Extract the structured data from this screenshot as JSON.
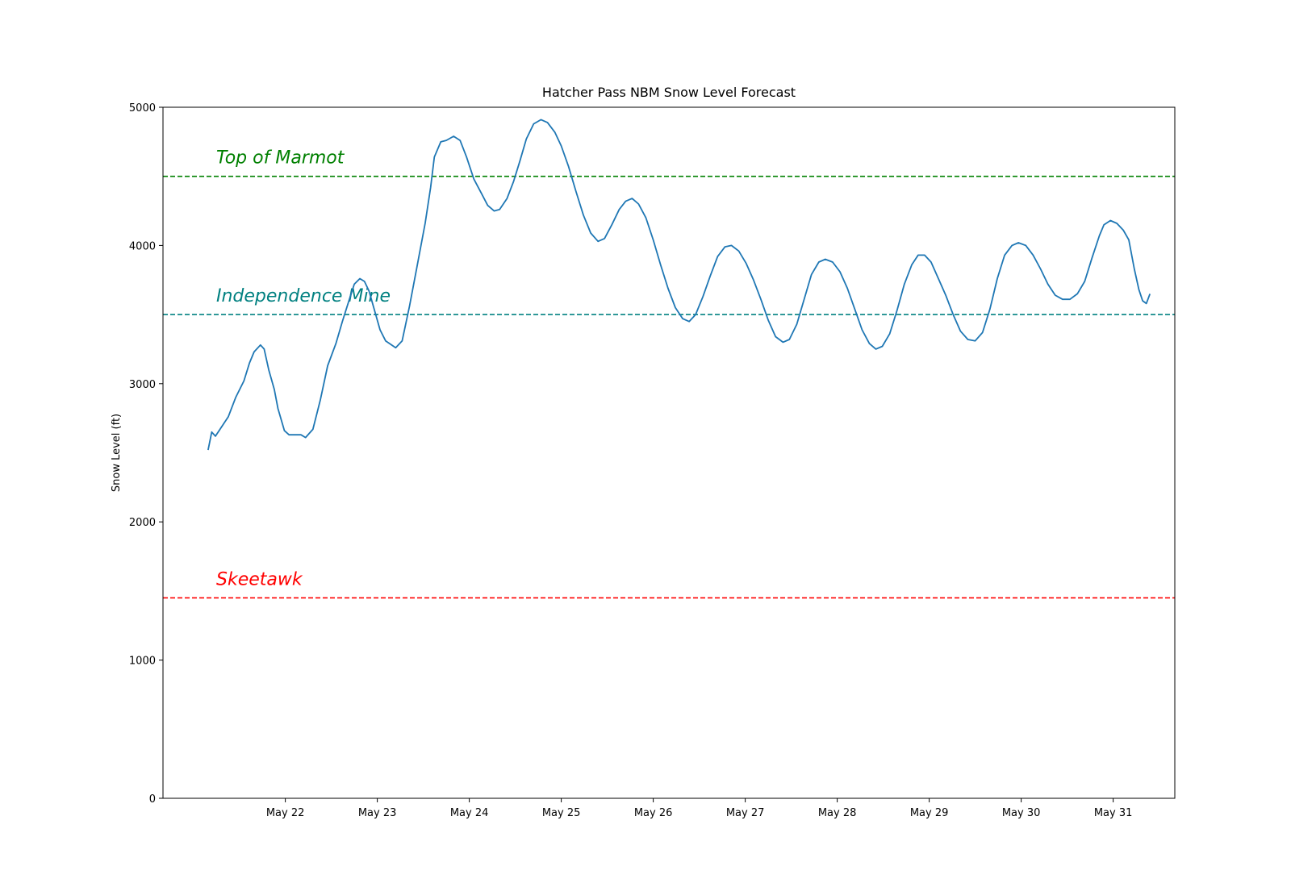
{
  "chart_data": {
    "type": "line",
    "title": "Hatcher Pass NBM Snow Level Forecast",
    "xlabel": "",
    "ylabel": "Snow Level (ft)",
    "ylim": [
      0,
      5000
    ],
    "xlim": [
      -1.33,
      9.67
    ],
    "yticks": [
      0,
      1000,
      2000,
      3000,
      4000,
      5000
    ],
    "xticks": [
      {
        "x": 0,
        "label": "May 22"
      },
      {
        "x": 1,
        "label": "May 23"
      },
      {
        "x": 2,
        "label": "May 24"
      },
      {
        "x": 3,
        "label": "May 25"
      },
      {
        "x": 4,
        "label": "May 26"
      },
      {
        "x": 5,
        "label": "May 27"
      },
      {
        "x": 6,
        "label": "May 28"
      },
      {
        "x": 7,
        "label": "May 29"
      },
      {
        "x": 8,
        "label": "May 30"
      },
      {
        "x": 9,
        "label": "May 31"
      }
    ],
    "grid": false,
    "series": [
      {
        "color": "#1f77b4",
        "points": [
          [
            -0.84,
            2520
          ],
          [
            -0.8,
            2650
          ],
          [
            -0.76,
            2620
          ],
          [
            -0.72,
            2660
          ],
          [
            -0.62,
            2760
          ],
          [
            -0.54,
            2900
          ],
          [
            -0.45,
            3020
          ],
          [
            -0.39,
            3150
          ],
          [
            -0.34,
            3230
          ],
          [
            -0.27,
            3280
          ],
          [
            -0.23,
            3250
          ],
          [
            -0.18,
            3100
          ],
          [
            -0.12,
            2960
          ],
          [
            -0.08,
            2820
          ],
          [
            -0.01,
            2660
          ],
          [
            0.04,
            2630
          ],
          [
            0.17,
            2630
          ],
          [
            0.22,
            2610
          ],
          [
            0.3,
            2670
          ],
          [
            0.38,
            2880
          ],
          [
            0.46,
            3130
          ],
          [
            0.55,
            3290
          ],
          [
            0.62,
            3450
          ],
          [
            0.71,
            3640
          ],
          [
            0.75,
            3720
          ],
          [
            0.81,
            3760
          ],
          [
            0.86,
            3740
          ],
          [
            0.91,
            3670
          ],
          [
            0.97,
            3530
          ],
          [
            1.03,
            3390
          ],
          [
            1.09,
            3310
          ],
          [
            1.2,
            3260
          ],
          [
            1.27,
            3310
          ],
          [
            1.35,
            3560
          ],
          [
            1.43,
            3840
          ],
          [
            1.52,
            4160
          ],
          [
            1.58,
            4420
          ],
          [
            1.62,
            4640
          ],
          [
            1.69,
            4750
          ],
          [
            1.75,
            4760
          ],
          [
            1.83,
            4790
          ],
          [
            1.9,
            4760
          ],
          [
            1.97,
            4640
          ],
          [
            2.05,
            4480
          ],
          [
            2.13,
            4380
          ],
          [
            2.2,
            4290
          ],
          [
            2.27,
            4250
          ],
          [
            2.33,
            4260
          ],
          [
            2.41,
            4340
          ],
          [
            2.48,
            4460
          ],
          [
            2.55,
            4610
          ],
          [
            2.62,
            4770
          ],
          [
            2.7,
            4880
          ],
          [
            2.78,
            4910
          ],
          [
            2.85,
            4890
          ],
          [
            2.93,
            4820
          ],
          [
            3.0,
            4720
          ],
          [
            3.08,
            4570
          ],
          [
            3.16,
            4390
          ],
          [
            3.24,
            4220
          ],
          [
            3.32,
            4090
          ],
          [
            3.4,
            4030
          ],
          [
            3.47,
            4050
          ],
          [
            3.55,
            4150
          ],
          [
            3.63,
            4260
          ],
          [
            3.7,
            4320
          ],
          [
            3.77,
            4340
          ],
          [
            3.84,
            4300
          ],
          [
            3.92,
            4200
          ],
          [
            4.0,
            4040
          ],
          [
            4.08,
            3860
          ],
          [
            4.16,
            3690
          ],
          [
            4.24,
            3550
          ],
          [
            4.32,
            3470
          ],
          [
            4.39,
            3450
          ],
          [
            4.46,
            3500
          ],
          [
            4.54,
            3630
          ],
          [
            4.62,
            3780
          ],
          [
            4.7,
            3920
          ],
          [
            4.78,
            3990
          ],
          [
            4.85,
            4000
          ],
          [
            4.93,
            3960
          ],
          [
            5.01,
            3870
          ],
          [
            5.09,
            3750
          ],
          [
            5.17,
            3610
          ],
          [
            5.25,
            3460
          ],
          [
            5.33,
            3340
          ],
          [
            5.41,
            3300
          ],
          [
            5.48,
            3320
          ],
          [
            5.56,
            3430
          ],
          [
            5.64,
            3610
          ],
          [
            5.72,
            3790
          ],
          [
            5.8,
            3880
          ],
          [
            5.87,
            3900
          ],
          [
            5.95,
            3880
          ],
          [
            6.03,
            3810
          ],
          [
            6.11,
            3690
          ],
          [
            6.19,
            3540
          ],
          [
            6.27,
            3390
          ],
          [
            6.35,
            3290
          ],
          [
            6.42,
            3250
          ],
          [
            6.49,
            3270
          ],
          [
            6.57,
            3360
          ],
          [
            6.65,
            3530
          ],
          [
            6.73,
            3720
          ],
          [
            6.81,
            3860
          ],
          [
            6.88,
            3930
          ],
          [
            6.95,
            3930
          ],
          [
            7.02,
            3880
          ],
          [
            7.1,
            3760
          ],
          [
            7.18,
            3640
          ],
          [
            7.26,
            3500
          ],
          [
            7.34,
            3380
          ],
          [
            7.42,
            3320
          ],
          [
            7.5,
            3310
          ],
          [
            7.58,
            3370
          ],
          [
            7.66,
            3540
          ],
          [
            7.74,
            3760
          ],
          [
            7.82,
            3930
          ],
          [
            7.9,
            4000
          ],
          [
            7.97,
            4020
          ],
          [
            8.05,
            4000
          ],
          [
            8.13,
            3930
          ],
          [
            8.21,
            3830
          ],
          [
            8.29,
            3720
          ],
          [
            8.37,
            3640
          ],
          [
            8.45,
            3610
          ],
          [
            8.53,
            3610
          ],
          [
            8.61,
            3650
          ],
          [
            8.69,
            3740
          ],
          [
            8.77,
            3910
          ],
          [
            8.85,
            4070
          ],
          [
            8.9,
            4150
          ],
          [
            8.97,
            4180
          ],
          [
            9.04,
            4160
          ],
          [
            9.11,
            4110
          ],
          [
            9.17,
            4040
          ],
          [
            9.23,
            3830
          ],
          [
            9.28,
            3680
          ],
          [
            9.32,
            3600
          ],
          [
            9.36,
            3580
          ],
          [
            9.4,
            3650
          ]
        ]
      }
    ],
    "reference_lines": [
      {
        "y": 4500,
        "label": "Top of Marmot",
        "color": "#008000"
      },
      {
        "y": 3500,
        "label": "Independence Mine",
        "color": "#008080"
      },
      {
        "y": 1450,
        "label": "Skeetawk",
        "color": "#ff0000"
      }
    ]
  }
}
